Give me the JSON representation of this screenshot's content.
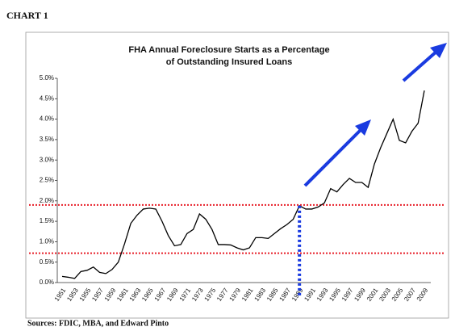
{
  "header": "CHART 1",
  "footer": "Sources: FDIC, MBA, and Edward Pinto",
  "chart_data": {
    "type": "line",
    "title": [
      "FHA Annual Foreclosure Starts as a Percentage",
      "of Outstanding Insured Loans"
    ],
    "categories": [
      "1951",
      null,
      "1953",
      null,
      "1955",
      null,
      "1957",
      null,
      "1959",
      null,
      "1961",
      null,
      "1963",
      null,
      "1965",
      null,
      "1967",
      null,
      "1969",
      null,
      "1971",
      null,
      "1973",
      null,
      "1975",
      null,
      "1977",
      null,
      "1979",
      null,
      "1981",
      null,
      "1983",
      null,
      "1985",
      null,
      "1987",
      null,
      "1989",
      null,
      "1991",
      null,
      "1993",
      null,
      "1995",
      null,
      "1997",
      null,
      "1999",
      null,
      "2001",
      null,
      "2003",
      null,
      "2005",
      null,
      "2007",
      null,
      "2009"
    ],
    "values": [
      0.15,
      0.13,
      0.1,
      0.27,
      0.3,
      0.38,
      0.25,
      0.22,
      0.32,
      0.5,
      0.95,
      1.45,
      1.65,
      1.8,
      1.82,
      1.8,
      1.5,
      1.15,
      0.9,
      0.93,
      1.2,
      1.3,
      1.68,
      1.55,
      1.3,
      0.93,
      0.93,
      0.92,
      0.85,
      0.8,
      0.85,
      1.1,
      1.1,
      1.08,
      1.2,
      1.32,
      1.42,
      1.55,
      1.88,
      1.8,
      1.8,
      1.85,
      1.95,
      2.3,
      2.22,
      2.4,
      2.55,
      2.45,
      2.45,
      2.33,
      2.9,
      3.3,
      3.65,
      4.0,
      3.48,
      3.42,
      3.7,
      3.9,
      4.7
    ],
    "color": "#000000",
    "ylim": [
      0,
      5
    ],
    "yticks": [
      {
        "value": 0,
        "label": "0.0%"
      },
      {
        "value": 0.5,
        "label": "0.5%"
      },
      {
        "value": 1,
        "label": "1.0%"
      },
      {
        "value": 1.5,
        "label": "1.5%"
      },
      {
        "value": 2,
        "label": "2.0%"
      },
      {
        "value": 2.5,
        "label": "2.5%"
      },
      {
        "value": 3,
        "label": "3.0%"
      },
      {
        "value": 3.5,
        "label": "3.5%"
      },
      {
        "value": 4,
        "label": "4.0%"
      },
      {
        "value": 4.5,
        "label": "4.5%"
      },
      {
        "value": 5,
        "label": "5.0%"
      }
    ],
    "reference_lines": [
      1.9,
      0.72
    ],
    "reference_color": "#e8202a",
    "highlight": "1989",
    "highlight_color": "#1a3be0"
  }
}
